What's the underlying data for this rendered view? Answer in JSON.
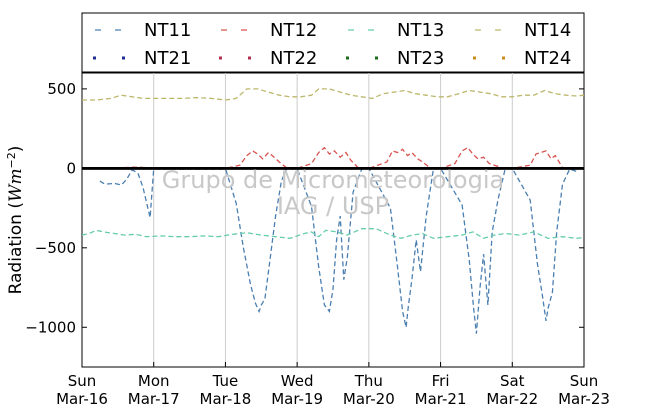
{
  "chart_data": {
    "type": "line",
    "ylabel": "Radiation (Wm⁻²)",
    "ylabel_main": "Radiation (",
    "ylabel_unit": "Wm",
    "ylabel_exp": "−2",
    "ylabel_close": ")",
    "ylim": [
      -1250,
      600
    ],
    "yticks": [
      500,
      0,
      -500,
      -1000
    ],
    "ytick_labels": [
      "500",
      "0",
      "−500",
      "−1000"
    ],
    "xlim": [
      0,
      7
    ],
    "xticks": [
      {
        "day": "Sun",
        "date": "Mar-16"
      },
      {
        "day": "Mon",
        "date": "Mar-17"
      },
      {
        "day": "Tue",
        "date": "Mar-18"
      },
      {
        "day": "Wed",
        "date": "Mar-19"
      },
      {
        "day": "Thu",
        "date": "Mar-20"
      },
      {
        "day": "Fri",
        "date": "Mar-21"
      },
      {
        "day": "Sat",
        "date": "Mar-22"
      },
      {
        "day": "Sun",
        "date": "Mar-23"
      }
    ],
    "watermark": [
      "Grupo de Micrometeorologia",
      "IAG / USP"
    ],
    "legend": [
      {
        "name": "NT11",
        "style": "dashed",
        "color": "#4a7fb0"
      },
      {
        "name": "NT12",
        "style": "dashed",
        "color": "#d9534f"
      },
      {
        "name": "NT13",
        "style": "dashed",
        "color": "#66cdaa"
      },
      {
        "name": "NT14",
        "style": "dashed",
        "color": "#bdb76b"
      },
      {
        "name": "NT21",
        "style": "dotted",
        "color": "#1f2f8f"
      },
      {
        "name": "NT22",
        "style": "dotted",
        "color": "#b03050"
      },
      {
        "name": "NT23",
        "style": "dotted",
        "color": "#1a6b1a"
      },
      {
        "name": "NT24",
        "style": "dotted",
        "color": "#cc8a1a"
      }
    ],
    "series": [
      {
        "name": "NT11",
        "color": "#4a7fb0",
        "x": [
          0.25,
          0.32,
          0.45,
          0.55,
          0.62,
          0.7,
          0.78,
          0.85,
          0.95,
          1.0,
          1.2,
          1.4,
          1.6,
          1.8,
          1.95,
          2.0,
          2.15,
          2.25,
          2.35,
          2.42,
          2.47,
          2.5,
          2.55,
          2.62,
          2.7,
          2.78,
          2.85,
          2.95,
          3.0,
          3.2,
          3.3,
          3.38,
          3.45,
          3.5,
          3.55,
          3.6,
          3.65,
          3.7,
          3.78,
          3.9,
          4.0,
          4.3,
          4.4,
          4.47,
          4.52,
          4.55,
          4.6,
          4.66,
          4.72,
          4.8,
          4.9,
          5.0,
          5.3,
          5.4,
          5.46,
          5.5,
          5.55,
          5.6,
          5.66,
          5.72,
          5.8,
          5.9,
          6.0,
          6.25,
          6.35,
          6.42,
          6.47,
          6.5,
          6.56,
          6.62,
          6.7,
          6.8,
          6.9
        ],
        "y": [
          -80,
          -100,
          -95,
          -105,
          -70,
          -10,
          -30,
          -120,
          -310,
          -5,
          -5,
          -5,
          -5,
          -5,
          -5,
          0,
          -220,
          -500,
          -730,
          -850,
          -900,
          -860,
          -820,
          -580,
          -300,
          -80,
          -5,
          -5,
          0,
          -240,
          -620,
          -860,
          -900,
          -760,
          -450,
          -300,
          -700,
          -560,
          -150,
          -5,
          0,
          -250,
          -620,
          -900,
          -1000,
          -870,
          -700,
          -450,
          -650,
          -300,
          -5,
          0,
          -230,
          -580,
          -880,
          -1040,
          -750,
          -540,
          -860,
          -400,
          -200,
          -5,
          0,
          -200,
          -600,
          -800,
          -960,
          -880,
          -780,
          -400,
          -100,
          -5,
          -20
        ]
      },
      {
        "name": "NT12",
        "color": "#d9534f",
        "x": [
          0.25,
          0.5,
          0.75,
          1.0,
          1.25,
          1.5,
          1.75,
          2.0,
          2.2,
          2.3,
          2.38,
          2.45,
          2.52,
          2.6,
          2.68,
          2.75,
          2.85,
          3.0,
          3.2,
          3.3,
          3.38,
          3.45,
          3.52,
          3.6,
          3.68,
          3.75,
          3.85,
          4.0,
          4.25,
          4.33,
          4.4,
          4.47,
          4.54,
          4.6,
          4.68,
          4.75,
          4.85,
          5.0,
          5.2,
          5.3,
          5.38,
          5.45,
          5.52,
          5.6,
          5.68,
          5.75,
          5.85,
          6.0,
          6.25,
          6.33,
          6.4,
          6.47,
          6.54,
          6.6,
          6.7
        ],
        "y": [
          5,
          3,
          8,
          2,
          4,
          3,
          5,
          0,
          20,
          80,
          110,
          90,
          60,
          100,
          70,
          40,
          5,
          0,
          30,
          100,
          130,
          90,
          110,
          70,
          100,
          50,
          5,
          0,
          40,
          110,
          100,
          120,
          80,
          100,
          60,
          40,
          5,
          0,
          30,
          110,
          130,
          90,
          60,
          70,
          30,
          20,
          5,
          0,
          20,
          90,
          100,
          110,
          60,
          80,
          5
        ]
      },
      {
        "name": "NT13",
        "color": "#66cdaa",
        "x": [
          0,
          0.1,
          0.2,
          0.3,
          0.45,
          0.6,
          0.75,
          0.9,
          1.1,
          1.3,
          1.5,
          1.7,
          1.9,
          2.1,
          2.3,
          2.5,
          2.7,
          2.9,
          3.1,
          3.2,
          3.3,
          3.4,
          3.55,
          3.7,
          3.9,
          4.1,
          4.3,
          4.45,
          4.6,
          4.75,
          4.9,
          5.1,
          5.3,
          5.45,
          5.6,
          5.75,
          5.9,
          6.1,
          6.3,
          6.5,
          6.7,
          6.9,
          7.0
        ],
        "y": [
          -420,
          -410,
          -390,
          -400,
          -410,
          -420,
          -415,
          -430,
          -425,
          -430,
          -430,
          -425,
          -430,
          -415,
          -405,
          -420,
          -430,
          -440,
          -410,
          -400,
          -430,
          -390,
          -400,
          -420,
          -380,
          -380,
          -420,
          -440,
          -420,
          -410,
          -440,
          -430,
          -420,
          -400,
          -440,
          -420,
          -410,
          -420,
          -400,
          -440,
          -430,
          -440,
          -435
        ]
      },
      {
        "name": "NT14",
        "color": "#bdb76b",
        "x": [
          0,
          0.2,
          0.4,
          0.55,
          0.7,
          0.85,
          1.0,
          1.2,
          1.4,
          1.6,
          1.8,
          2.0,
          2.15,
          2.3,
          2.45,
          2.6,
          2.75,
          2.9,
          3.05,
          3.2,
          3.3,
          3.45,
          3.6,
          3.75,
          3.9,
          4.05,
          4.2,
          4.35,
          4.5,
          4.65,
          4.8,
          4.95,
          5.1,
          5.25,
          5.4,
          5.55,
          5.7,
          5.85,
          6.0,
          6.15,
          6.3,
          6.45,
          6.6,
          6.75,
          6.9,
          7.0
        ],
        "y": [
          430,
          430,
          440,
          460,
          450,
          440,
          440,
          440,
          440,
          445,
          440,
          430,
          440,
          500,
          500,
          480,
          460,
          450,
          450,
          460,
          500,
          500,
          480,
          460,
          450,
          440,
          470,
          480,
          490,
          470,
          460,
          450,
          450,
          470,
          490,
          480,
          470,
          450,
          450,
          460,
          460,
          490,
          470,
          460,
          455,
          460
        ]
      },
      {
        "name": "NT21",
        "color": "#1f2f8f",
        "x": [
          0,
          7
        ],
        "y": [
          0,
          0
        ]
      },
      {
        "name": "NT22",
        "color": "#b03050",
        "x": [
          0,
          7
        ],
        "y": [
          0,
          0
        ]
      },
      {
        "name": "NT23",
        "color": "#1a6b1a",
        "x": [
          0,
          7
        ],
        "y": [
          0,
          0
        ]
      },
      {
        "name": "NT24",
        "color": "#cc8a1a",
        "x": [
          0,
          7
        ],
        "y": [
          0,
          0
        ]
      }
    ]
  }
}
